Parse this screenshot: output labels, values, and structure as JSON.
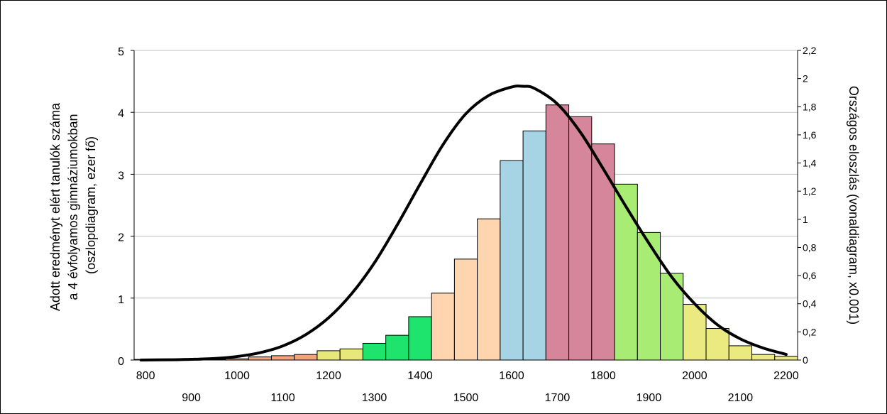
{
  "chart_data": {
    "type": "bar",
    "ylabel_lines": [
      "Adott eredményt elért tanulók száma",
      "a 4 évfolyamos gimnáziumokban",
      "(oszlopdiagram, ezer fő)"
    ],
    "y2label": "Országos eloszlás (vonaldiagram, x0.001)",
    "ylim": [
      0,
      5
    ],
    "y2lim": [
      0,
      2.2
    ],
    "xlim": [
      775,
      2225
    ],
    "yticks": [
      "0",
      "1",
      "2",
      "3",
      "4",
      "5"
    ],
    "y2ticks": [
      "0",
      "0,2",
      "0,4",
      "0,6",
      "0,8",
      "1",
      "1,2",
      "1,4",
      "1,6",
      "1,8",
      "2",
      "2,2"
    ],
    "xticks_upper": [
      "800",
      "1000",
      "1200",
      "1400",
      "1600",
      "1800",
      "2000",
      "2200"
    ],
    "xticks_lower": [
      "900",
      "1100",
      "1300",
      "1500",
      "1700",
      "1900",
      "2100"
    ],
    "grid": true,
    "bin_width": 50,
    "bars": [
      {
        "x": 800,
        "value": 0.01,
        "color": "#f7a27a"
      },
      {
        "x": 850,
        "value": 0.01,
        "color": "#f7a27a"
      },
      {
        "x": 900,
        "value": 0.01,
        "color": "#f7a27a"
      },
      {
        "x": 950,
        "value": 0.01,
        "color": "#f7a27a"
      },
      {
        "x": 1000,
        "value": 0.02,
        "color": "#f7a27a"
      },
      {
        "x": 1050,
        "value": 0.05,
        "color": "#f7a27a"
      },
      {
        "x": 1100,
        "value": 0.07,
        "color": "#f7a27a"
      },
      {
        "x": 1150,
        "value": 0.09,
        "color": "#f7a27a"
      },
      {
        "x": 1200,
        "value": 0.15,
        "color": "#e8e87a"
      },
      {
        "x": 1250,
        "value": 0.18,
        "color": "#e8e87a"
      },
      {
        "x": 1300,
        "value": 0.27,
        "color": "#1ee46e"
      },
      {
        "x": 1350,
        "value": 0.4,
        "color": "#1ee46e"
      },
      {
        "x": 1400,
        "value": 0.7,
        "color": "#1ee46e"
      },
      {
        "x": 1450,
        "value": 1.08,
        "color": "#ffd5b0"
      },
      {
        "x": 1500,
        "value": 1.63,
        "color": "#ffd5b0"
      },
      {
        "x": 1550,
        "value": 2.28,
        "color": "#ffd5b0"
      },
      {
        "x": 1600,
        "value": 3.22,
        "color": "#a6d4e4"
      },
      {
        "x": 1650,
        "value": 3.7,
        "color": "#a6d4e4"
      },
      {
        "x": 1700,
        "value": 4.12,
        "color": "#d6869a"
      },
      {
        "x": 1750,
        "value": 3.93,
        "color": "#d6869a"
      },
      {
        "x": 1800,
        "value": 3.49,
        "color": "#d6869a"
      },
      {
        "x": 1850,
        "value": 2.84,
        "color": "#a8ec74"
      },
      {
        "x": 1900,
        "value": 2.06,
        "color": "#a8ec74"
      },
      {
        "x": 1950,
        "value": 1.4,
        "color": "#a8ec74"
      },
      {
        "x": 2000,
        "value": 0.9,
        "color": "#eaea80"
      },
      {
        "x": 2050,
        "value": 0.51,
        "color": "#eaea80"
      },
      {
        "x": 2100,
        "value": 0.23,
        "color": "#eaea80"
      },
      {
        "x": 2150,
        "value": 0.09,
        "color": "#eaea80"
      },
      {
        "x": 2200,
        "value": 0.06,
        "color": "#eaea80"
      }
    ],
    "series": [
      {
        "type": "line",
        "axis": "y2",
        "color": "#000000",
        "x": [
          790,
          850,
          900,
          950,
          1000,
          1050,
          1100,
          1150,
          1200,
          1250,
          1300,
          1350,
          1400,
          1450,
          1500,
          1550,
          1600,
          1625,
          1650,
          1700,
          1750,
          1800,
          1850,
          1900,
          1950,
          2000,
          2050,
          2100,
          2150,
          2200
        ],
        "y": [
          0.0,
          0.002,
          0.005,
          0.011,
          0.025,
          0.052,
          0.1,
          0.18,
          0.3,
          0.47,
          0.69,
          0.96,
          1.25,
          1.53,
          1.75,
          1.88,
          1.94,
          1.945,
          1.93,
          1.82,
          1.62,
          1.36,
          1.09,
          0.83,
          0.59,
          0.4,
          0.25,
          0.15,
          0.085,
          0.04
        ]
      }
    ],
    "colors": {
      "line": "#000000",
      "grid": "#bfbfbf",
      "bar_outline": "#000000"
    }
  }
}
